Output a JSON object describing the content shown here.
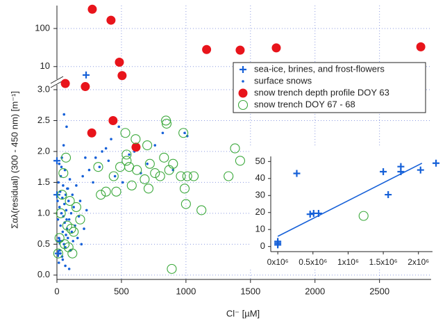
{
  "chart_data": [
    {
      "type": "scatter",
      "x_label": "Cl⁻ [µM]",
      "y_label": "Σαλ(residual) (300 - 450 nm) [m⁻¹]",
      "xlim": [
        0,
        2900
      ],
      "xticks": [
        0,
        500,
        1000,
        1500,
        2000,
        2500
      ],
      "ylim": [
        -0.07,
        3.18
      ],
      "yticks": [
        {
          "value": 0,
          "label": "0.0"
        },
        0.5,
        {
          "value": 1,
          "label": "1.0"
        },
        1.5,
        {
          "value": 2,
          "label": "2.0"
        },
        2.5,
        {
          "value": 3,
          "label": "3.0"
        }
      ],
      "y2lim": [
        5.5,
        400
      ],
      "y2scale": "log",
      "y2ticks": [
        10,
        100
      ],
      "grid": true,
      "legend": "upper right",
      "series": [
        {
          "name": "sea-ice, brines, and frost-flowers",
          "color": "#1560d8",
          "marker": "plus",
          "x": [
            0,
            0,
            20,
            10,
            226
          ],
          "values": [
            1.3,
            1.85,
            0.55,
            0.35,
            6
          ]
        },
        {
          "name": "surface snows",
          "color": "#1560d8",
          "marker": "dot",
          "x": [
            5,
            8,
            12,
            15,
            18,
            20,
            22,
            25,
            28,
            30,
            32,
            35,
            38,
            40,
            42,
            45,
            48,
            50,
            52,
            55,
            58,
            60,
            62,
            65,
            68,
            70,
            72,
            75,
            78,
            80,
            85,
            90,
            95,
            100,
            105,
            110,
            115,
            120,
            125,
            130,
            140,
            150,
            160,
            170,
            180,
            190,
            200,
            210,
            220,
            230,
            250,
            260,
            280,
            300,
            330,
            350,
            380,
            400,
            420,
            450,
            480,
            510,
            560,
            600,
            650,
            700,
            760,
            820,
            900,
            990,
            1010,
            15,
            25,
            35,
            45,
            55,
            65,
            75,
            85,
            95
          ],
          "values": [
            1.2,
            0.9,
            1.5,
            0.6,
            1.8,
            1.1,
            0.4,
            1.35,
            0.8,
            1.6,
            0.55,
            1.0,
            1.9,
            0.3,
            1.25,
            0.7,
            1.45,
            0.95,
            2.1,
            0.5,
            1.15,
            0.85,
            1.7,
            0.45,
            1.3,
            0.65,
            1.05,
            2.4,
            0.75,
            1.4,
            0.6,
            1.2,
            0.9,
            1.55,
            0.4,
            1.0,
            0.7,
            1.3,
            0.55,
            1.1,
            0.8,
            1.45,
            0.6,
            0.95,
            1.2,
            0.5,
            1.6,
            0.75,
            1.9,
            1.05,
            1.7,
            2.3,
            1.5,
            1.9,
            1.75,
            2.0,
            2.05,
            1.85,
            2.2,
            1.6,
            2.4,
            1.5,
            1.95,
            2.0,
            1.65,
            1.8,
            2.1,
            2.3,
            1.7,
            2.3,
            2.25,
            0.2,
            0.35,
            1.75,
            0.25,
            2.6,
            0.15,
            0.9,
            1.4,
            0.1
          ]
        },
        {
          "name": "snow trench depth profile DOY 63",
          "color": "#e8141b",
          "marker": "filled-circle",
          "x": [
            65,
            220,
            270,
            435,
            613,
            274,
            419,
            484,
            505,
            1160,
            1420,
            1700,
            2820
          ],
          "values": [
            3.1,
            3.05,
            2.3,
            2.5,
            2.07,
            320,
            165,
            13,
            5.8,
            28,
            27,
            31,
            33
          ]
        },
        {
          "name": "snow trench DOY 67 - 68",
          "color": "#3aa83a",
          "marker": "open-circle",
          "x": [
            10,
            20,
            30,
            40,
            50,
            60,
            70,
            80,
            90,
            100,
            110,
            120,
            130,
            150,
            180,
            320,
            340,
            380,
            440,
            460,
            490,
            530,
            540,
            560,
            580,
            610,
            620,
            680,
            700,
            710,
            720,
            760,
            800,
            830,
            845,
            850,
            870,
            900,
            960,
            980,
            990,
            1000,
            1010,
            1060,
            1120,
            1330,
            1380,
            1420,
            890,
            540
          ],
          "values": [
            0.35,
            0.6,
            1.0,
            1.3,
            1.65,
            0.5,
            1.9,
            0.8,
            0.45,
            1.2,
            0.75,
            0.35,
            0.7,
            1.1,
            0.9,
            1.75,
            1.3,
            1.35,
            1.6,
            1.35,
            1.75,
            2.3,
            1.85,
            1.75,
            1.45,
            2.2,
            1.7,
            1.55,
            2.1,
            1.4,
            1.8,
            1.65,
            1.6,
            1.9,
            2.5,
            2.45,
            1.7,
            1.8,
            1.6,
            2.3,
            1.4,
            1.15,
            1.6,
            1.6,
            1.05,
            1.6,
            2.05,
            1.85,
            0.1,
            1.95
          ]
        }
      ]
    },
    {
      "type": "scatter",
      "xlim": [
        -100000,
        2200000
      ],
      "xticks": [
        {
          "value": 0,
          "label": "0x10⁶"
        },
        {
          "value": 500000,
          "label": "0.5x10⁶"
        },
        {
          "value": 1000000,
          "label": "1x10⁶"
        },
        {
          "value": 1500000,
          "label": "1.5x10⁶"
        },
        {
          "value": 2000000,
          "label": "2x10⁶"
        }
      ],
      "ylim": [
        -3,
        53
      ],
      "yticks": [
        0,
        10,
        20,
        30,
        40,
        50
      ],
      "series": [
        {
          "color": "#1560d8",
          "marker": "plus",
          "x": [
            0,
            0,
            0,
            270000,
            460000,
            510000,
            580000,
            1500000,
            1570000,
            1750000,
            1750000,
            2030000,
            2250000
          ],
          "values": [
            1,
            2,
            3,
            43,
            19,
            19.5,
            19.5,
            44,
            30.5,
            44,
            47,
            45,
            49
          ]
        },
        {
          "color": "#3aa83a",
          "marker": "open-circle",
          "x": [
            1220000
          ],
          "values": [
            18
          ]
        },
        {
          "color": "#1560d8",
          "marker": "line",
          "x": [
            0,
            2050000
          ],
          "values": [
            6,
            49
          ]
        }
      ]
    }
  ]
}
